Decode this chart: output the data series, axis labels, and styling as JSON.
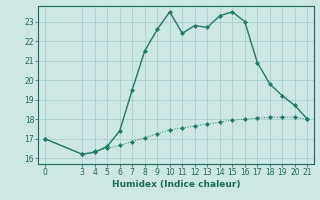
{
  "title": "",
  "xlabel": "Humidex (Indice chaleur)",
  "ylabel": "",
  "background_color": "#cde8e4",
  "grid_color": "#a8d0cc",
  "line_color": "#1e7a62",
  "series1_x": [
    0,
    3,
    4,
    5,
    6,
    7,
    8,
    9,
    10,
    11,
    12,
    13,
    14,
    15,
    16,
    17,
    18,
    19,
    20,
    21
  ],
  "series1_y": [
    17.0,
    16.2,
    16.3,
    16.6,
    17.4,
    19.5,
    21.5,
    22.6,
    23.5,
    22.4,
    22.8,
    22.7,
    23.3,
    23.5,
    23.0,
    20.9,
    19.8,
    19.2,
    18.7,
    18.0
  ],
  "series2_x": [
    0,
    3,
    4,
    5,
    6,
    7,
    8,
    9,
    10,
    11,
    12,
    13,
    14,
    15,
    16,
    17,
    18,
    19,
    20,
    21
  ],
  "series2_y": [
    17.0,
    16.2,
    16.35,
    16.5,
    16.65,
    16.85,
    17.05,
    17.25,
    17.45,
    17.55,
    17.65,
    17.75,
    17.85,
    17.95,
    18.0,
    18.05,
    18.1,
    18.1,
    18.1,
    18.0
  ],
  "xlim": [
    -0.5,
    21.5
  ],
  "ylim": [
    15.7,
    23.8
  ],
  "yticks": [
    16,
    17,
    18,
    19,
    20,
    21,
    22,
    23
  ],
  "xticks": [
    0,
    3,
    4,
    5,
    6,
    7,
    8,
    9,
    10,
    11,
    12,
    13,
    14,
    15,
    16,
    17,
    18,
    19,
    20,
    21
  ],
  "tick_fontsize": 5.5,
  "label_fontsize": 6.5,
  "axis_color": "#1e6655",
  "marker": "D",
  "marker_size": 2.2,
  "linewidth1": 1.0,
  "linewidth2": 0.7
}
